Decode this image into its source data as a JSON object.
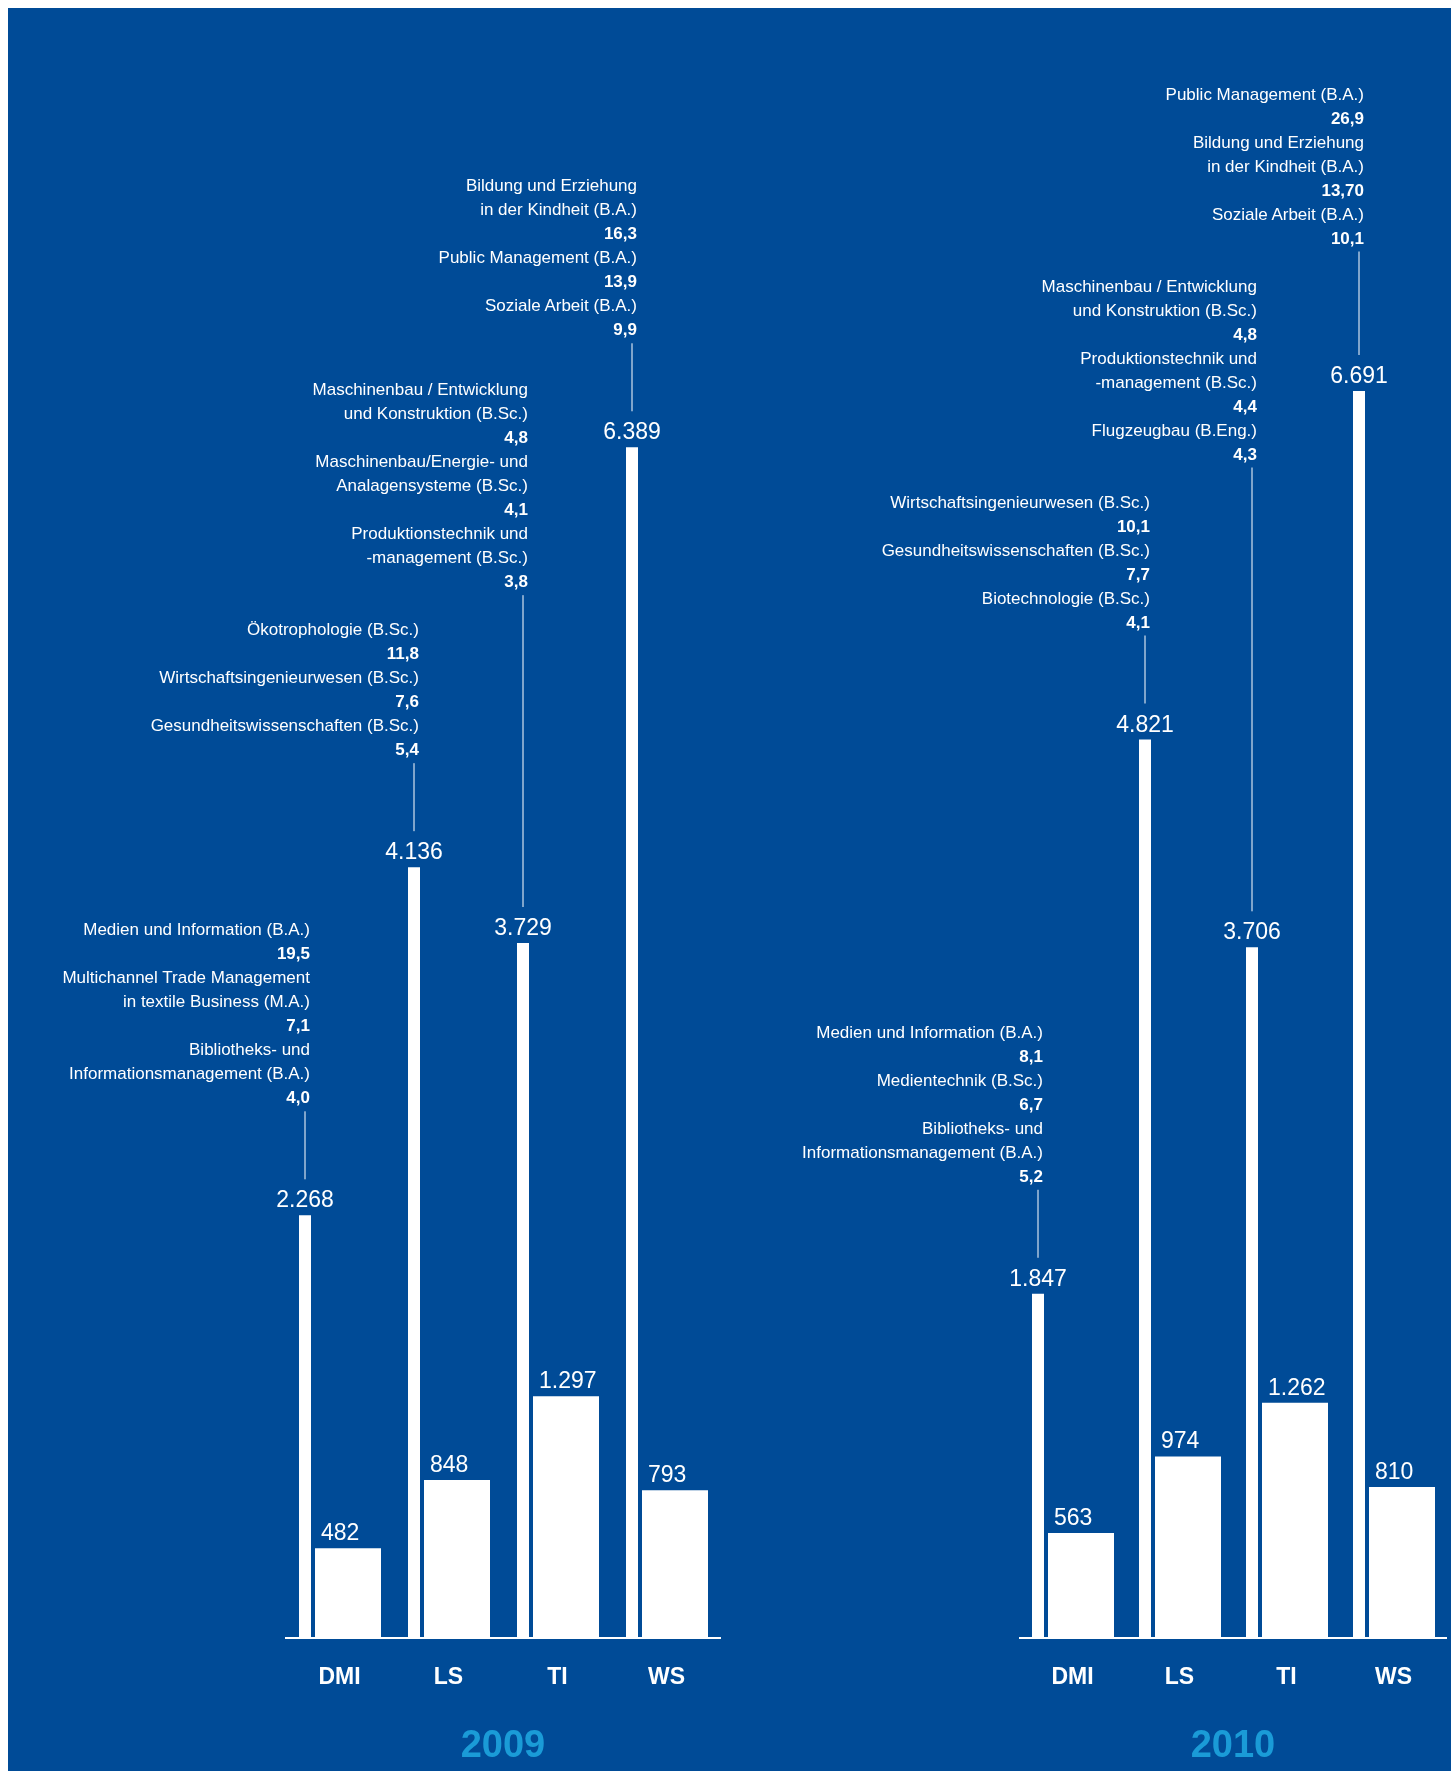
{
  "chart_data": [
    {
      "type": "bar",
      "title": "2009",
      "categories": [
        "DMI",
        "LS",
        "TI",
        "WS"
      ],
      "series": [
        {
          "color": "#ffffff",
          "values": [
            2268,
            4136,
            3729,
            6389
          ],
          "value_labels": [
            "2.268",
            "4.136",
            "3.729",
            "6.389"
          ]
        },
        {
          "color": "#ffffff",
          "values": [
            482,
            848,
            1297,
            793
          ],
          "value_labels": [
            "482",
            "848",
            "1.297",
            "793"
          ]
        }
      ],
      "annotations": [
        "Medien und Information (B.A.)\n19,5\nMultichannel Trade Management\nin textile Business (M.A.)\n7,1\nBibliotheks- und\nInformationsmanagement (B.A.)\n4,0",
        "Ökotrophologie (B.Sc.)\n11,8\nWirtschaftsingenieurwesen (B.Sc.)\n7,6\nGesundheitswissenschaften (B.Sc.)\n5,4",
        "Maschinenbau / Entwicklung\nund Konstruktion (B.Sc.)\n4,8\nMaschinenbau/Energie- und\nAnalagensysteme (B.Sc.)\n4,1\nProduktionstechnik und\n-management (B.Sc.)\n3,8",
        "Bildung und Erziehung\nin der Kindheit (B.A.)\n16,3\nPublic Management (B.A.)\n13,9\nSoziale Arbeit (B.A.)\n9,9"
      ]
    },
    {
      "type": "bar",
      "title": "2010",
      "categories": [
        "DMI",
        "LS",
        "TI",
        "WS"
      ],
      "series": [
        {
          "color": "#ffffff",
          "values": [
            1847,
            4821,
            3706,
            6691
          ],
          "value_labels": [
            "1.847",
            "4.821",
            "3.706",
            "6.691"
          ]
        },
        {
          "color": "#ffffff",
          "values": [
            563,
            974,
            1262,
            810
          ],
          "value_labels": [
            "563",
            "974",
            "1.262",
            "810"
          ]
        }
      ],
      "annotations": [
        "Medien und Information (B.A.)\n8,1\nMedientechnik (B.Sc.)\n6,7\nBibliotheks- und\nInformationsmanagement (B.A.)\n5,2",
        "Wirtschaftsingenieurwesen (B.Sc.)\n10,1\nGesundheitswissenschaften (B.Sc.)\n7,7\nBiotechnologie (B.Sc.)\n4,1",
        "Maschinenbau / Entwicklung\nund Konstruktion (B.Sc.)\n4,8\nProduktionstechnik und\n-management (B.Sc.)\n4,4\nFlugzeugbau (B.Eng.)\n4,3",
        "Public Management (B.A.)\n26,9\nBildung und Erziehung\nin der Kindheit (B.A.)\n13,70\nSoziale Arbeit (B.A.)\n10,1"
      ]
    }
  ]
}
